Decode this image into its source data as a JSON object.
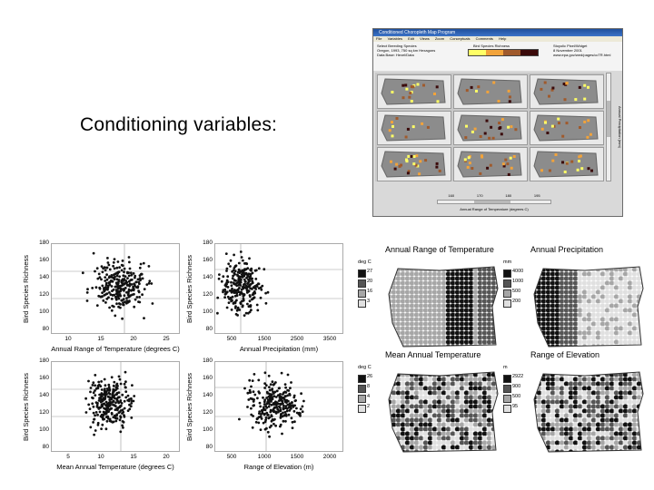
{
  "headline": "Conditioning variables:",
  "app_window": {
    "title": "Conditioned Choropleth Map Program",
    "menu": [
      "File",
      "Variables",
      "Edit",
      "Views",
      "Zoom",
      "Conceptuals",
      "Comments",
      "Help"
    ],
    "header_left": [
      "Select Breeding Species",
      "Oregon, 1993, 750 sq km Hexagons",
      "Data Base: Hexel/Data"
    ],
    "header_center": "Bird Species Richness",
    "header_right": [
      "Stoyolic Pixel/Widget",
      "8 November 2001",
      "www.epa.gov/wed/pages/ccTR.html"
    ],
    "colorbar_colors": [
      "#ffff66",
      "#f2a33a",
      "#a05a2c",
      "#3b0a0a"
    ],
    "vertical_label": "Annual Precipitation (mm)",
    "horizontal_label": "Annual Range of Temperature (degrees C)",
    "hslider_ticks": [
      "160",
      "170",
      "180",
      "195"
    ]
  },
  "scatter_plots": [
    {
      "ylabel": "Bird Species Richness",
      "xlabel": "Annual Range of Temperature (degrees C)",
      "yticks": [
        "180",
        "160",
        "140",
        "120",
        "100",
        "80"
      ],
      "xticks": [
        "10",
        "15",
        "20",
        "25"
      ]
    },
    {
      "ylabel": "Bird Species Richness",
      "xlabel": "Annual Precipitation (mm)",
      "yticks": [
        "180",
        "160",
        "140",
        "120",
        "100",
        "80"
      ],
      "xticks": [
        "500",
        "1500",
        "2500",
        "3500"
      ]
    },
    {
      "ylabel": "Bird Species Richness",
      "xlabel": "Mean Annual Temperature (degrees C)",
      "yticks": [
        "180",
        "160",
        "140",
        "120",
        "100",
        "80"
      ],
      "xticks": [
        "5",
        "10",
        "15",
        "20"
      ]
    },
    {
      "ylabel": "Bird Species Richness",
      "xlabel": "Range of Elevation (m)",
      "yticks": [
        "180",
        "160",
        "140",
        "120",
        "100",
        "80"
      ],
      "xticks": [
        "500",
        "1000",
        "1500",
        "2000"
      ]
    }
  ],
  "maps": [
    {
      "title": "Annual Range of Temperature",
      "unit": "deg C",
      "legend": [
        "27",
        "20",
        "16",
        "3"
      ]
    },
    {
      "title": "Annual Precipitation",
      "unit": "mm",
      "legend": [
        "4000",
        "1000",
        "500",
        "200"
      ]
    },
    {
      "title": "Mean Annual Temperature",
      "unit": "deg C",
      "legend": [
        "26",
        "8",
        "4",
        "2"
      ]
    },
    {
      "title": "Range of Elevation",
      "unit": "m",
      "legend": [
        "2922",
        "900",
        "500",
        "95"
      ]
    }
  ]
}
